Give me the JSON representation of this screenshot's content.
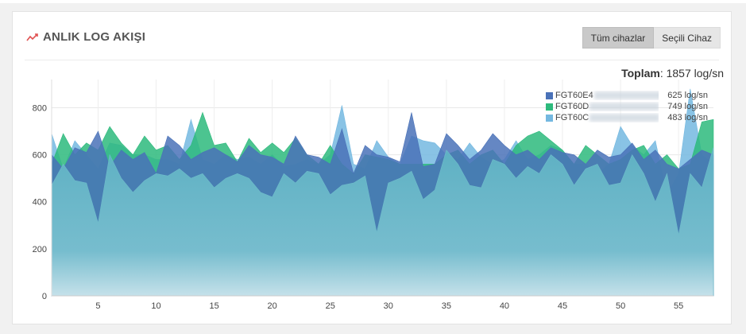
{
  "panel": {
    "title": "ANLIK LOG AKIŞI",
    "icon": "trend-line-icon",
    "buttons": [
      {
        "label": "Tüm cihazlar",
        "active": true
      },
      {
        "label": "Seçili Cihaz",
        "active": false
      }
    ]
  },
  "chart_data": {
    "type": "area",
    "total_label": "Toplam",
    "total_value": ": 1857 log/sn",
    "x": [
      1,
      2,
      3,
      4,
      5,
      6,
      7,
      8,
      9,
      10,
      11,
      12,
      13,
      14,
      15,
      16,
      17,
      18,
      19,
      20,
      21,
      22,
      23,
      24,
      25,
      26,
      27,
      28,
      29,
      30,
      31,
      32,
      33,
      34,
      35,
      36,
      37,
      38,
      39,
      40,
      41,
      42,
      43,
      44,
      45,
      46,
      47,
      48,
      49,
      50,
      51,
      52,
      53,
      54,
      55,
      56,
      57,
      58
    ],
    "xticks": [
      5,
      10,
      15,
      20,
      25,
      30,
      35,
      40,
      45,
      50,
      55
    ],
    "yticks": [
      0,
      200,
      400,
      600,
      800
    ],
    "xlim": [
      1,
      58
    ],
    "ylim": [
      0,
      920
    ],
    "legend_placement": "top-right",
    "series": [
      {
        "name": "FGT60E4",
        "value_label": "625 log/sn",
        "color": "#4a72b8",
        "values": [
          600,
          540,
          630,
          610,
          700,
          550,
          620,
          580,
          610,
          520,
          680,
          640,
          580,
          610,
          630,
          600,
          570,
          640,
          600,
          590,
          560,
          680,
          600,
          590,
          560,
          710,
          520,
          640,
          600,
          590,
          570,
          780,
          550,
          560,
          690,
          640,
          580,
          620,
          690,
          640,
          600,
          620,
          580,
          630,
          610,
          600,
          560,
          620,
          590,
          600,
          650,
          580,
          620,
          560,
          540,
          580,
          620,
          600
        ]
      },
      {
        "name": "FGT60D",
        "value_label": "749 log/sn",
        "color": "#2dba7c",
        "values": [
          560,
          690,
          600,
          650,
          620,
          720,
          650,
          600,
          680,
          620,
          640,
          580,
          640,
          780,
          640,
          650,
          570,
          670,
          610,
          650,
          610,
          670,
          600,
          560,
          640,
          560,
          520,
          600,
          590,
          580,
          560,
          560,
          560,
          560,
          600,
          620,
          560,
          600,
          620,
          560,
          640,
          680,
          700,
          660,
          620,
          560,
          640,
          600,
          560,
          580,
          620,
          640,
          560,
          600,
          540,
          560,
          740,
          750
        ]
      },
      {
        "name": "FGT60C",
        "value_label": "483 log/sn",
        "color": "#74b8e0",
        "values": [
          690,
          540,
          660,
          600,
          540,
          650,
          640,
          600,
          600,
          580,
          580,
          560,
          750,
          580,
          560,
          600,
          580,
          590,
          560,
          600,
          550,
          560,
          580,
          560,
          600,
          810,
          560,
          540,
          660,
          590,
          560,
          680,
          660,
          650,
          600,
          580,
          650,
          590,
          560,
          580,
          660,
          580,
          600,
          640,
          620,
          560,
          560,
          520,
          560,
          720,
          640,
          600,
          660,
          430,
          520,
          880,
          600,
          560
        ]
      }
    ],
    "base_values": [
      470,
      560,
      490,
      480,
      310,
      600,
      500,
      440,
      490,
      520,
      510,
      540,
      500,
      520,
      460,
      500,
      520,
      500,
      440,
      420,
      520,
      480,
      530,
      520,
      430,
      470,
      480,
      510,
      270,
      480,
      500,
      530,
      410,
      450,
      620,
      560,
      470,
      460,
      580,
      560,
      500,
      550,
      520,
      600,
      560,
      470,
      540,
      560,
      470,
      480,
      600,
      520,
      400,
      520,
      260,
      520,
      460,
      630
    ]
  }
}
